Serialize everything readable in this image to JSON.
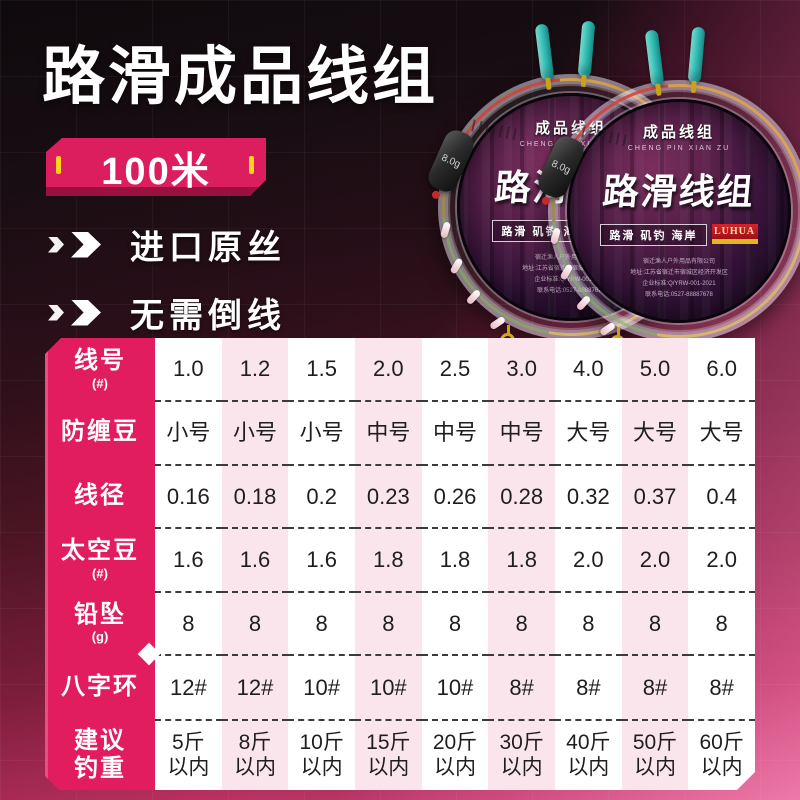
{
  "colors": {
    "accent_pink": "#e11d5f",
    "cell_pink": "#fbe5ec",
    "badge_yellow": "#ffd31e",
    "background_dark": "#170d12",
    "background_pink": "#ec7aa5",
    "float_teal": "#35c4bc"
  },
  "header": {
    "title": "路滑成品线组",
    "badge": "100米",
    "features": [
      {
        "label": "进口原丝"
      },
      {
        "label": "无需倒线"
      }
    ]
  },
  "product": {
    "label_top": "成品线组",
    "label_top_sub": "CHENG PIN XIAN ZU",
    "label_main": "路滑线组",
    "tagline": "路滑 矶钓 海岸",
    "brand": "LUHUA",
    "weight": "8.0g",
    "company_lines": "宿迁渔人户外用品有限公司\n地址:江苏省宿迁市宿城区经济开发区\n企业标准:Q/YRW-001-2021\n联系电话:0527-88887678"
  },
  "table": {
    "rows": [
      {
        "label": "线号",
        "sub": "(#)",
        "cells": [
          "1.0",
          "1.2",
          "1.5",
          "2.0",
          "2.5",
          "3.0",
          "4.0",
          "5.0",
          "6.0"
        ]
      },
      {
        "label": "防缠豆",
        "sub": "",
        "cells": [
          "小号",
          "小号",
          "小号",
          "中号",
          "中号",
          "中号",
          "大号",
          "大号",
          "大号"
        ]
      },
      {
        "label": "线径",
        "sub": "",
        "cells": [
          "0.16",
          "0.18",
          "0.2",
          "0.23",
          "0.26",
          "0.28",
          "0.32",
          "0.37",
          "0.4"
        ]
      },
      {
        "label": "太空豆",
        "sub": "(#)",
        "cells": [
          "1.6",
          "1.6",
          "1.6",
          "1.8",
          "1.8",
          "1.8",
          "2.0",
          "2.0",
          "2.0"
        ]
      },
      {
        "label": "铅坠",
        "sub": "(g)",
        "cells": [
          "8",
          "8",
          "8",
          "8",
          "8",
          "8",
          "8",
          "8",
          "8"
        ]
      },
      {
        "label": "八字环",
        "sub": "",
        "cells": [
          "12#",
          "12#",
          "10#",
          "10#",
          "10#",
          "8#",
          "8#",
          "8#",
          "8#"
        ]
      },
      {
        "label": "建议\n钓重",
        "sub": "",
        "cells": [
          "5斤\n以内",
          "8斤\n以内",
          "10斤\n以内",
          "15斤\n以内",
          "20斤\n以内",
          "30斤\n以内",
          "40斤\n以内",
          "50斤\n以内",
          "60斤\n以内"
        ]
      }
    ]
  }
}
